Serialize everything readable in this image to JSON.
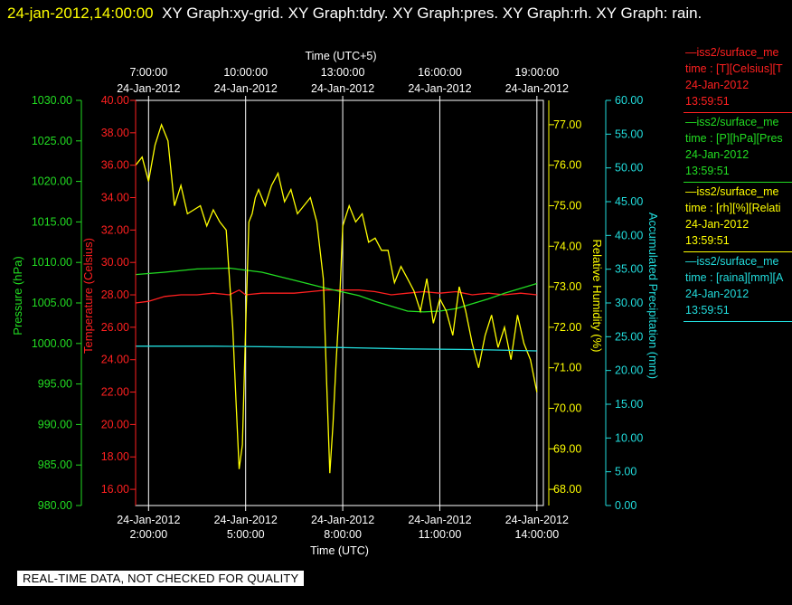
{
  "header": {
    "timestamp": "24-jan-2012,14:00:00",
    "graphs": "XY Graph:xy-grid.  XY Graph:tdry.  XY Graph:pres.  XY Graph:rh.  XY Graph: rain."
  },
  "footer": {
    "notice": "REAL-TIME DATA, NOT CHECKED FOR QUALITY"
  },
  "legend": [
    {
      "name": "iss2/surface_me",
      "field": "time : [T][Celsius][T",
      "date": "24-Jan-2012",
      "time": "13:59:51",
      "color": "#ff2020"
    },
    {
      "name": "iss2/surface_me",
      "field": "time : [P][hPa][Pres",
      "date": "24-Jan-2012",
      "time": "13:59:51",
      "color": "#22dd22"
    },
    {
      "name": "iss2/surface_me",
      "field": "time : [rh][%][Relati",
      "date": "24-Jan-2012",
      "time": "13:59:51",
      "color": "#ffff00"
    },
    {
      "name": "iss2/surface_me",
      "field": "time : [raina][mm][A",
      "date": "24-Jan-2012",
      "time": "13:59:51",
      "color": "#22dddd"
    }
  ],
  "chart_data": {
    "type": "line",
    "top_axis": {
      "label": "Time (UTC+5)",
      "ticks": [
        {
          "time": "7:00:00",
          "date": "24-Jan-2012"
        },
        {
          "time": "10:00:00",
          "date": "24-Jan-2012"
        },
        {
          "time": "13:00:00",
          "date": "24-Jan-2012"
        },
        {
          "time": "16:00:00",
          "date": "24-Jan-2012"
        },
        {
          "time": "19:00:00",
          "date": "24-Jan-2012"
        }
      ]
    },
    "bottom_axis": {
      "label": "Time (UTC)",
      "range_hours": [
        1.6,
        14.2
      ],
      "ticks": [
        {
          "hour": 2,
          "date": "24-Jan-2012",
          "time": "2:00:00"
        },
        {
          "hour": 5,
          "date": "24-Jan-2012",
          "time": "5:00:00"
        },
        {
          "hour": 8,
          "date": "24-Jan-2012",
          "time": "8:00:00"
        },
        {
          "hour": 11,
          "date": "24-Jan-2012",
          "time": "11:00:00"
        },
        {
          "hour": 14,
          "date": "24-Jan-2012",
          "time": "14:00:00"
        }
      ]
    },
    "grid": true,
    "axes": [
      {
        "id": "pres",
        "label": "Pressure (hPa)",
        "color": "#22dd22",
        "side": "left",
        "range": [
          980,
          1030
        ],
        "ticks": [
          "980.00",
          "985.00",
          "990.00",
          "995.00",
          "1000.00",
          "1005.00",
          "1010.00",
          "1015.00",
          "1020.00",
          "1025.00",
          "1030.00"
        ]
      },
      {
        "id": "tdry",
        "label": "Temperature (Celsius)",
        "color": "#ff2020",
        "side": "left",
        "range": [
          15,
          40
        ],
        "ticks": [
          "16.00",
          "18.00",
          "20.00",
          "22.00",
          "24.00",
          "26.00",
          "28.00",
          "30.00",
          "32.00",
          "34.00",
          "36.00",
          "38.00",
          "40.00"
        ]
      },
      {
        "id": "rh",
        "label": "Relative Humidity (%)",
        "color": "#ffff00",
        "side": "right",
        "range": [
          67.6,
          77.6
        ],
        "ticks": [
          "68.00",
          "69.00",
          "70.00",
          "71.00",
          "72.00",
          "73.00",
          "74.00",
          "75.00",
          "76.00",
          "77.00"
        ]
      },
      {
        "id": "rain",
        "label": "Accumulated Precipitation (mm)",
        "color": "#22dddd",
        "side": "right",
        "range": [
          0,
          60
        ],
        "ticks": [
          "0.00",
          "5.00",
          "10.00",
          "15.00",
          "20.00",
          "25.00",
          "30.00",
          "35.00",
          "40.00",
          "45.00",
          "50.00",
          "55.00",
          "60.00"
        ]
      }
    ],
    "series": [
      {
        "axis": "tdry",
        "color": "#ff2020",
        "x": [
          1.6,
          2.0,
          2.5,
          3.0,
          3.5,
          4.0,
          4.5,
          4.8,
          5.0,
          5.5,
          6.0,
          6.5,
          7.0,
          7.5,
          8.0,
          8.5,
          9.0,
          9.5,
          10.0,
          10.5,
          11.0,
          11.5,
          12.0,
          12.5,
          13.0,
          13.5,
          14.0
        ],
        "y": [
          27.5,
          27.6,
          27.9,
          28.0,
          28.0,
          28.1,
          28.0,
          28.3,
          28.0,
          28.1,
          28.1,
          28.1,
          28.2,
          28.3,
          28.3,
          28.3,
          28.2,
          28.0,
          28.1,
          28.2,
          28.1,
          28.2,
          28.0,
          28.1,
          28.0,
          28.1,
          28.0
        ]
      },
      {
        "axis": "pres",
        "color": "#22dd22",
        "x": [
          1.6,
          2.5,
          3.5,
          4.5,
          5.5,
          6.5,
          7.5,
          8.5,
          9.0,
          9.5,
          10.0,
          10.5,
          11.0,
          11.5,
          12.0,
          12.5,
          13.0,
          13.5,
          14.0
        ],
        "y": [
          1008.5,
          1008.8,
          1009.2,
          1009.3,
          1008.8,
          1007.8,
          1006.8,
          1005.9,
          1005.2,
          1004.6,
          1004.0,
          1003.9,
          1004.0,
          1004.3,
          1004.9,
          1005.5,
          1006.2,
          1006.8,
          1007.4
        ]
      },
      {
        "axis": "rh",
        "color": "#ffff00",
        "x": [
          1.6,
          1.8,
          2.0,
          2.2,
          2.4,
          2.6,
          2.8,
          3.0,
          3.2,
          3.4,
          3.6,
          3.8,
          4.0,
          4.2,
          4.4,
          4.6,
          4.7,
          4.8,
          4.9,
          5.0,
          5.1,
          5.2,
          5.3,
          5.4,
          5.6,
          5.8,
          6.0,
          6.2,
          6.4,
          6.6,
          6.8,
          7.0,
          7.2,
          7.4,
          7.5,
          7.6,
          7.7,
          7.8,
          7.9,
          8.0,
          8.2,
          8.4,
          8.6,
          8.8,
          9.0,
          9.2,
          9.4,
          9.6,
          9.8,
          10.0,
          10.2,
          10.4,
          10.6,
          10.8,
          11.0,
          11.2,
          11.4,
          11.6,
          11.8,
          12.0,
          12.2,
          12.4,
          12.6,
          12.8,
          13.0,
          13.2,
          13.4,
          13.6,
          13.8,
          14.0
        ],
        "y": [
          76.0,
          76.2,
          75.6,
          76.5,
          77.0,
          76.6,
          75.0,
          75.5,
          74.8,
          74.9,
          75.0,
          74.5,
          74.9,
          74.6,
          74.4,
          72.0,
          70.2,
          68.5,
          69.1,
          72.0,
          74.6,
          74.8,
          75.2,
          75.4,
          75.0,
          75.5,
          75.8,
          75.1,
          75.4,
          74.8,
          75.0,
          75.2,
          74.6,
          73.2,
          70.7,
          68.4,
          69.6,
          71.2,
          72.6,
          74.5,
          75.0,
          74.6,
          74.8,
          74.1,
          74.2,
          73.9,
          73.9,
          73.1,
          73.5,
          73.2,
          72.9,
          72.4,
          73.2,
          72.1,
          72.7,
          72.4,
          71.8,
          73.0,
          72.4,
          71.6,
          71.0,
          71.8,
          72.3,
          71.5,
          72.0,
          71.2,
          72.3,
          71.6,
          71.2,
          70.4
        ]
      },
      {
        "axis": "rain",
        "color": "#22dddd",
        "x": [
          1.6,
          4.0,
          8.0,
          10.0,
          12.0,
          14.0
        ],
        "y": [
          23.6,
          23.6,
          23.4,
          23.2,
          23.1,
          22.9
        ]
      }
    ]
  }
}
